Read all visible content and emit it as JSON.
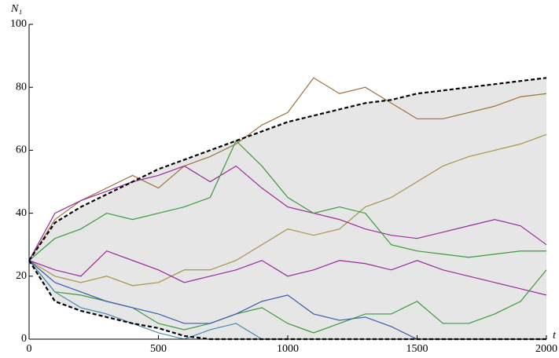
{
  "chart_data": {
    "type": "line",
    "x_label": "t",
    "y_label": "N₁",
    "x": [
      0,
      100,
      200,
      300,
      400,
      500,
      600,
      700,
      800,
      900,
      1000,
      1100,
      1200,
      1300,
      1400,
      1500,
      1600,
      1700,
      1800,
      1900,
      2000
    ],
    "envelope": {
      "color": "#000000",
      "fill": "#e6e6e6",
      "upper": [
        25,
        37,
        42,
        46,
        50,
        54,
        57,
        60,
        63,
        66,
        69,
        71,
        73,
        75,
        76,
        78,
        79,
        80,
        81,
        82,
        83
      ],
      "lower": [
        25,
        12,
        9,
        7,
        5,
        3.5,
        1,
        0,
        0,
        0,
        0,
        0,
        0,
        0,
        0,
        0,
        0,
        0,
        0,
        0,
        0
      ]
    },
    "series": [
      {
        "color": "#a0703a",
        "values": [
          25,
          38,
          44,
          48,
          52,
          48,
          55,
          58,
          62,
          68,
          72,
          83,
          78,
          80,
          75,
          70,
          70,
          72,
          74,
          77,
          78
        ]
      },
      {
        "color": "#a8914a",
        "values": [
          25,
          20,
          18,
          20,
          17,
          18,
          22,
          22,
          25,
          30,
          35,
          33,
          35,
          42,
          45,
          50,
          55,
          58,
          60,
          62,
          65
        ]
      },
      {
        "color": "#9a2a9a",
        "values": [
          25,
          40,
          44,
          47,
          50,
          52,
          55,
          50,
          55,
          48,
          42,
          40,
          38,
          35,
          33,
          32,
          34,
          36,
          38,
          36,
          30
        ]
      },
      {
        "color": "#3a9a3a",
        "values": [
          25,
          32,
          35,
          40,
          38,
          40,
          42,
          45,
          63,
          55,
          45,
          40,
          42,
          40,
          30,
          28,
          27,
          26,
          27,
          28,
          28
        ]
      },
      {
        "color": "#9a2a9a",
        "values": [
          25,
          22,
          20,
          28,
          25,
          22,
          18,
          20,
          22,
          25,
          20,
          22,
          25,
          24,
          22,
          25,
          22,
          20,
          18,
          16,
          14
        ]
      },
      {
        "color": "#3a9a3a",
        "values": [
          25,
          15,
          14,
          12,
          10,
          5,
          3,
          5,
          8,
          10,
          5,
          2,
          5,
          8,
          8,
          12,
          5,
          5,
          8,
          12,
          22
        ]
      },
      {
        "color": "#3a5aaa",
        "values": [
          25,
          18,
          15,
          12,
          10,
          8,
          5,
          5,
          8,
          12,
          14,
          8,
          6,
          7,
          4,
          0,
          0,
          0,
          0,
          0,
          0
        ]
      },
      {
        "color": "#4a8ab0",
        "values": [
          25,
          15,
          10,
          8,
          5,
          2,
          0,
          3,
          5,
          0,
          0,
          null,
          null,
          null,
          null,
          null,
          null,
          null,
          null,
          null,
          null
        ]
      }
    ],
    "xlim": [
      0,
      2000
    ],
    "xticks": [
      0,
      500,
      1000,
      1500,
      2000
    ],
    "ylim": [
      0,
      100
    ],
    "yticks": [
      0,
      20,
      40,
      60,
      80,
      100
    ]
  }
}
